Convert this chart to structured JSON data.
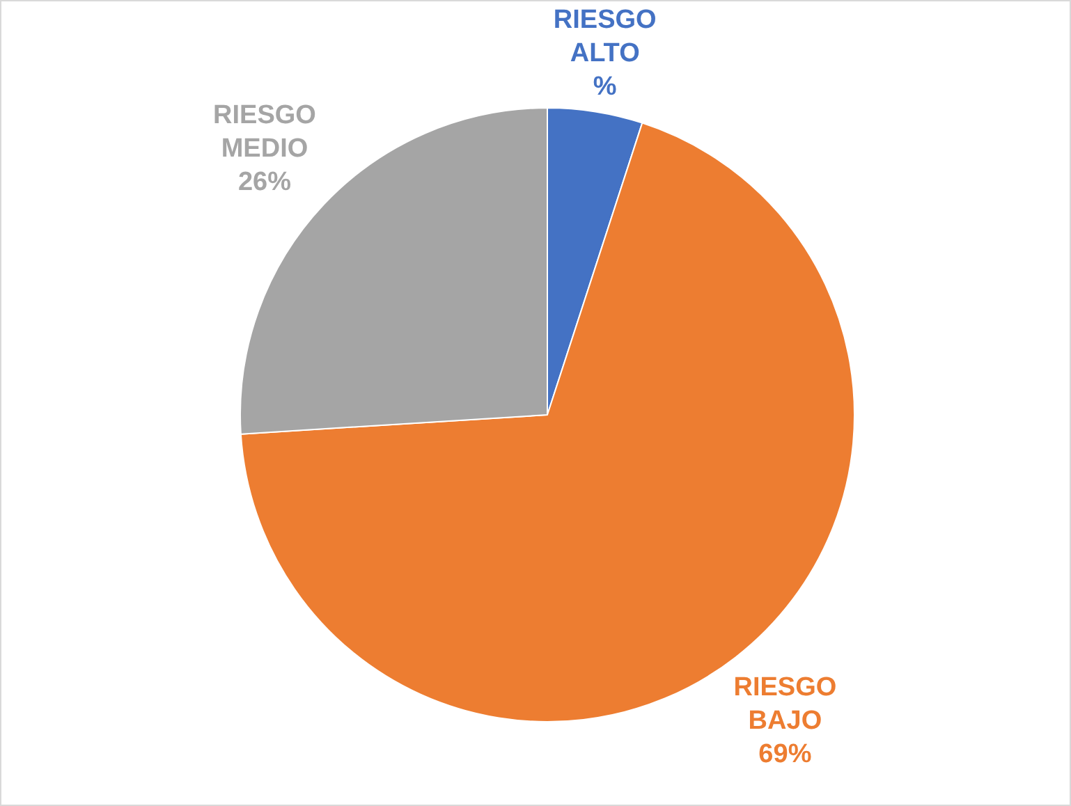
{
  "chart_data": {
    "type": "pie",
    "categories": [
      "RIESGO ALTO",
      "RIESGO BAJO",
      "RIESGO MEDIO"
    ],
    "values": [
      5,
      69,
      26
    ],
    "colors": [
      "#4472c4",
      "#ed7d31",
      "#a5a5a5"
    ],
    "value_labels": [
      "%",
      "69%",
      "26%"
    ],
    "legend": false
  }
}
